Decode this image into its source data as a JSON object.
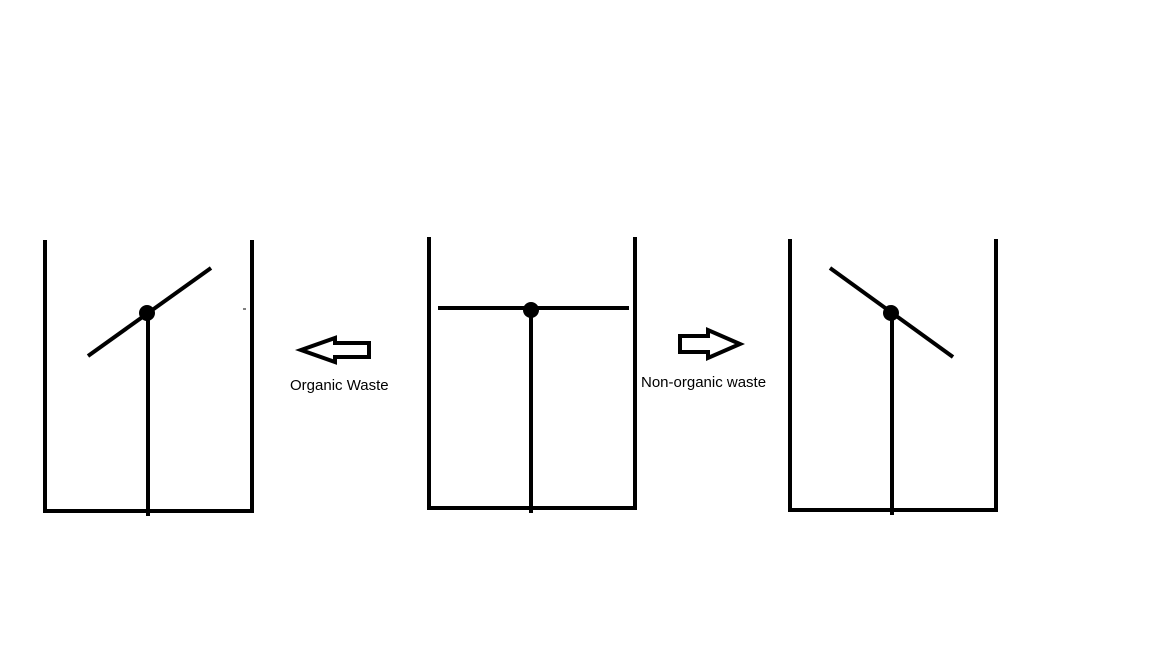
{
  "labels": {
    "left": "Organic Waste",
    "right": "Non-organic waste"
  },
  "colors": {
    "ink": "#000000",
    "background": "#ffffff"
  },
  "diagram": {
    "bins": [
      {
        "id": "left-bin",
        "flap_state": "tilted-up-right"
      },
      {
        "id": "center-bin",
        "flap_state": "horizontal"
      },
      {
        "id": "right-bin",
        "flap_state": "tilted-down-right"
      }
    ],
    "arrows": [
      {
        "id": "arrow-left",
        "direction": "left"
      },
      {
        "id": "arrow-right",
        "direction": "right"
      }
    ]
  }
}
